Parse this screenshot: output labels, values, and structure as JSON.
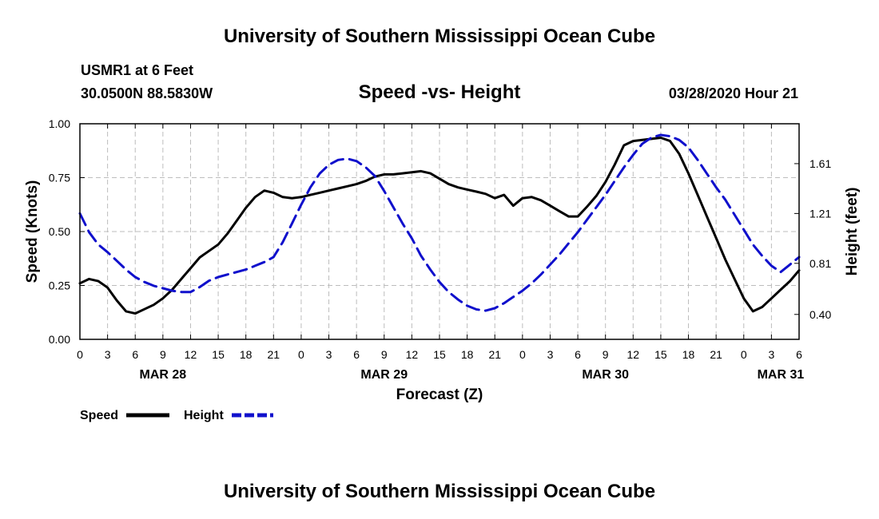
{
  "header": {
    "title": "University of Southern Mississippi Ocean Cube",
    "station": "USMR1 at 6 Feet",
    "location": "30.0500N 88.5830W",
    "subtitle": "Speed -vs- Height",
    "datetime": "03/28/2020 Hour 21"
  },
  "footer": {
    "title": "University of Southern Mississippi Ocean Cube"
  },
  "colors": {
    "speed": "#000000",
    "height": "#1010cc",
    "grid": "#bdbdbd"
  },
  "chart_data": {
    "type": "line",
    "title": "Speed -vs- Height",
    "xlabel": "Forecast (Z)",
    "ylabel": "Speed (Knots)",
    "y2label": "Height (feet)",
    "xlim": [
      0,
      78
    ],
    "ylim": [
      0,
      1
    ],
    "y2lim": [
      0.2,
      1.93
    ],
    "x_ticks": [
      0,
      3,
      6,
      9,
      12,
      15,
      18,
      21,
      24,
      27,
      30,
      33,
      36,
      39,
      42,
      45,
      48,
      51,
      54,
      57,
      60,
      63,
      66,
      69,
      72,
      75,
      78
    ],
    "x_tick_labels": [
      "0",
      "3",
      "6",
      "9",
      "12",
      "15",
      "18",
      "21",
      "0",
      "3",
      "6",
      "9",
      "12",
      "15",
      "18",
      "21",
      "0",
      "3",
      "6",
      "9",
      "12",
      "15",
      "18",
      "21",
      "0",
      "3",
      "6"
    ],
    "day_labels": [
      {
        "x": 9,
        "label": "MAR 28"
      },
      {
        "x": 33,
        "label": "MAR 29"
      },
      {
        "x": 57,
        "label": "MAR 30"
      },
      {
        "x": 76,
        "label": "MAR 31"
      }
    ],
    "y_ticks": [
      0,
      0.25,
      0.5,
      0.75,
      1.0
    ],
    "y_tick_labels": [
      "0.00",
      "0.25",
      "0.50",
      "0.75",
      "1.00"
    ],
    "y2_ticks": [
      0.4,
      0.81,
      1.21,
      1.61
    ],
    "y2_tick_labels": [
      "0.40",
      "0.81",
      "1.21",
      "1.61"
    ],
    "legend": [
      {
        "name": "Speed",
        "style": "solid"
      },
      {
        "name": "Height",
        "style": "dashed"
      }
    ],
    "series": [
      {
        "name": "Speed",
        "axis": "left",
        "style": "solid",
        "x": [
          0,
          1,
          2,
          3,
          4,
          5,
          6,
          7,
          8,
          9,
          10,
          11,
          12,
          13,
          14,
          15,
          16,
          17,
          18,
          19,
          20,
          21,
          22,
          23,
          24,
          25,
          26,
          27,
          28,
          29,
          30,
          31,
          32,
          33,
          34,
          35,
          36,
          37,
          38,
          39,
          40,
          41,
          42,
          43,
          44,
          45,
          46,
          47,
          48,
          49,
          50,
          51,
          52,
          53,
          54,
          55,
          56,
          57,
          58,
          59,
          60,
          61,
          62,
          63,
          64,
          65,
          66,
          67,
          68,
          69,
          70,
          71,
          72,
          73,
          74,
          75,
          76,
          77,
          78
        ],
        "values": [
          0.26,
          0.28,
          0.27,
          0.24,
          0.18,
          0.13,
          0.12,
          0.14,
          0.16,
          0.19,
          0.23,
          0.28,
          0.33,
          0.38,
          0.41,
          0.44,
          0.49,
          0.55,
          0.61,
          0.66,
          0.69,
          0.68,
          0.66,
          0.655,
          0.66,
          0.67,
          0.68,
          0.69,
          0.7,
          0.71,
          0.72,
          0.735,
          0.755,
          0.765,
          0.765,
          0.77,
          0.775,
          0.78,
          0.77,
          0.745,
          0.72,
          0.705,
          0.695,
          0.685,
          0.675,
          0.655,
          0.67,
          0.62,
          0.655,
          0.66,
          0.645,
          0.62,
          0.595,
          0.57,
          0.57,
          0.615,
          0.665,
          0.73,
          0.81,
          0.9,
          0.92,
          0.925,
          0.93,
          0.935,
          0.92,
          0.86,
          0.77,
          0.67,
          0.57,
          0.47,
          0.37,
          0.28,
          0.19,
          0.13,
          0.15,
          0.19,
          0.23,
          0.27,
          0.32
        ]
      },
      {
        "name": "Height",
        "axis": "right",
        "style": "dashed",
        "x": [
          0,
          1,
          2,
          3,
          4,
          5,
          6,
          7,
          8,
          9,
          10,
          11,
          12,
          13,
          14,
          15,
          16,
          17,
          18,
          19,
          20,
          21,
          22,
          23,
          24,
          25,
          26,
          27,
          28,
          29,
          30,
          31,
          32,
          33,
          34,
          35,
          36,
          37,
          38,
          39,
          40,
          41,
          42,
          43,
          44,
          45,
          46,
          47,
          48,
          49,
          50,
          51,
          52,
          53,
          54,
          55,
          56,
          57,
          58,
          59,
          60,
          61,
          62,
          63,
          64,
          65,
          66,
          67,
          68,
          69,
          70,
          71,
          72,
          73,
          74,
          75,
          76,
          77,
          78
        ],
        "values": [
          1.21,
          1.06,
          0.96,
          0.9,
          0.83,
          0.76,
          0.7,
          0.66,
          0.63,
          0.61,
          0.59,
          0.58,
          0.58,
          0.62,
          0.67,
          0.7,
          0.72,
          0.74,
          0.76,
          0.79,
          0.82,
          0.86,
          0.98,
          1.13,
          1.28,
          1.42,
          1.53,
          1.6,
          1.64,
          1.65,
          1.63,
          1.58,
          1.51,
          1.39,
          1.26,
          1.13,
          1.01,
          0.87,
          0.76,
          0.66,
          0.58,
          0.52,
          0.47,
          0.44,
          0.43,
          0.45,
          0.49,
          0.54,
          0.59,
          0.65,
          0.72,
          0.8,
          0.88,
          0.97,
          1.06,
          1.16,
          1.26,
          1.36,
          1.47,
          1.58,
          1.68,
          1.77,
          1.82,
          1.84,
          1.83,
          1.8,
          1.74,
          1.64,
          1.53,
          1.42,
          1.32,
          1.2,
          1.08,
          0.96,
          0.87,
          0.79,
          0.74,
          0.8,
          0.86
        ]
      }
    ]
  }
}
